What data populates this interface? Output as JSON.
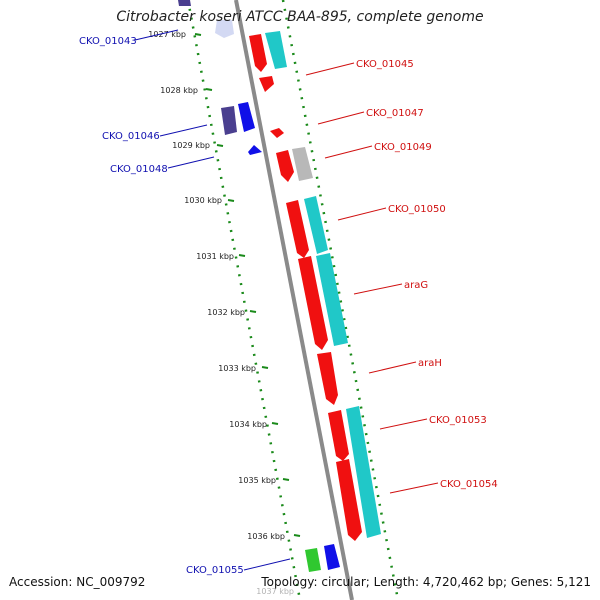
{
  "title": "Citrobacter koseri ATCC BAA-895, complete genome",
  "accession_text": "Accession: NC_009792",
  "topology_text": "Topology: circular; Length: 4,720,462 bp; Genes: 5,121",
  "colors": {
    "gene_red": "#f01010",
    "gene_blue": "#1010e8",
    "gene_navy": "#4a3f8f",
    "gene_cyan": "#20c8c8",
    "gene_gray": "#b8b8b8",
    "gene_green": "#30c830",
    "backbone": "#8a8a8a",
    "tick_dots": "#1a8a1a",
    "label_red": "#d01010",
    "label_blue": "#1010b0"
  },
  "ticks": [
    "1027 kbp",
    "1028 kbp",
    "1029 kbp",
    "1030 kbp",
    "1031 kbp",
    "1032 kbp",
    "1033 kbp",
    "1034 kbp",
    "1035 kbp",
    "1036 kbp",
    "1037 kbp"
  ],
  "gene_labels_right": [
    "CKO_01045",
    "CKO_01047",
    "CKO_01049",
    "CKO_01050",
    "araG",
    "araH",
    "CKO_01053",
    "CKO_01054"
  ],
  "gene_labels_left": [
    "CKO_01043",
    "CKO_01046",
    "CKO_01048",
    "CKO_01055"
  ]
}
